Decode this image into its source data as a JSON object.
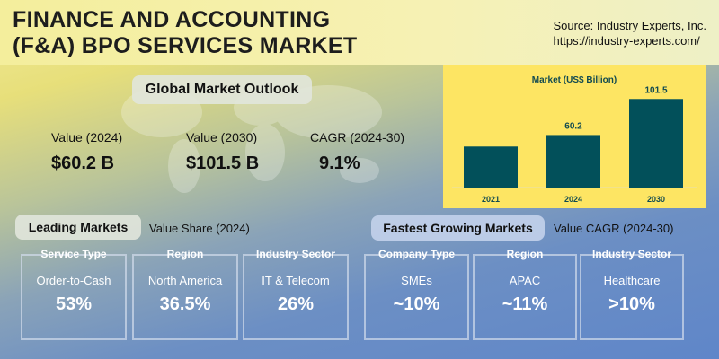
{
  "header": {
    "title_line1": "FINANCE AND ACCOUNTING",
    "title_line2": "(F&A) BPO SERVICES MARKET",
    "source_line1": "Source: Industry Experts, Inc.",
    "source_line2": "https://industry-experts.com/"
  },
  "outlook": {
    "title": "Global Market Outlook",
    "kpis": [
      {
        "label": "Value (2024)",
        "value": "$60.2 B"
      },
      {
        "label": "Value (2030)",
        "value": "$101.5 B"
      },
      {
        "label": "CAGR (2024-30)",
        "value": "9.1%"
      }
    ]
  },
  "chart_data": {
    "type": "bar",
    "title": "Market (US$ Billion)",
    "categories": [
      "2021",
      "2024",
      "2030"
    ],
    "values": [
      47,
      60.2,
      101.5
    ],
    "data_labels": [
      "",
      "60.2",
      "101.5"
    ],
    "ylim": [
      0,
      110
    ],
    "bar_color": "#02505a",
    "background": "#fde563"
  },
  "leading": {
    "title": "Leading Markets",
    "subtitle": "Value Share (2024)",
    "boxes": [
      {
        "header": "Service Type",
        "name": "Order-to-Cash",
        "value": "53%"
      },
      {
        "header": "Region",
        "name": "North America",
        "value": "36.5%"
      },
      {
        "header": "Industry Sector",
        "name": "IT & Telecom",
        "value": "26%"
      }
    ]
  },
  "fastest": {
    "title": "Fastest Growing Markets",
    "subtitle": "Value CAGR (2024-30)",
    "boxes": [
      {
        "header": "Company Type",
        "name": "SMEs",
        "value": "~10%"
      },
      {
        "header": "Region",
        "name": "APAC",
        "value": "~11%"
      },
      {
        "header": "Industry Sector",
        "name": "Healthcare",
        "value": ">10%"
      }
    ]
  }
}
